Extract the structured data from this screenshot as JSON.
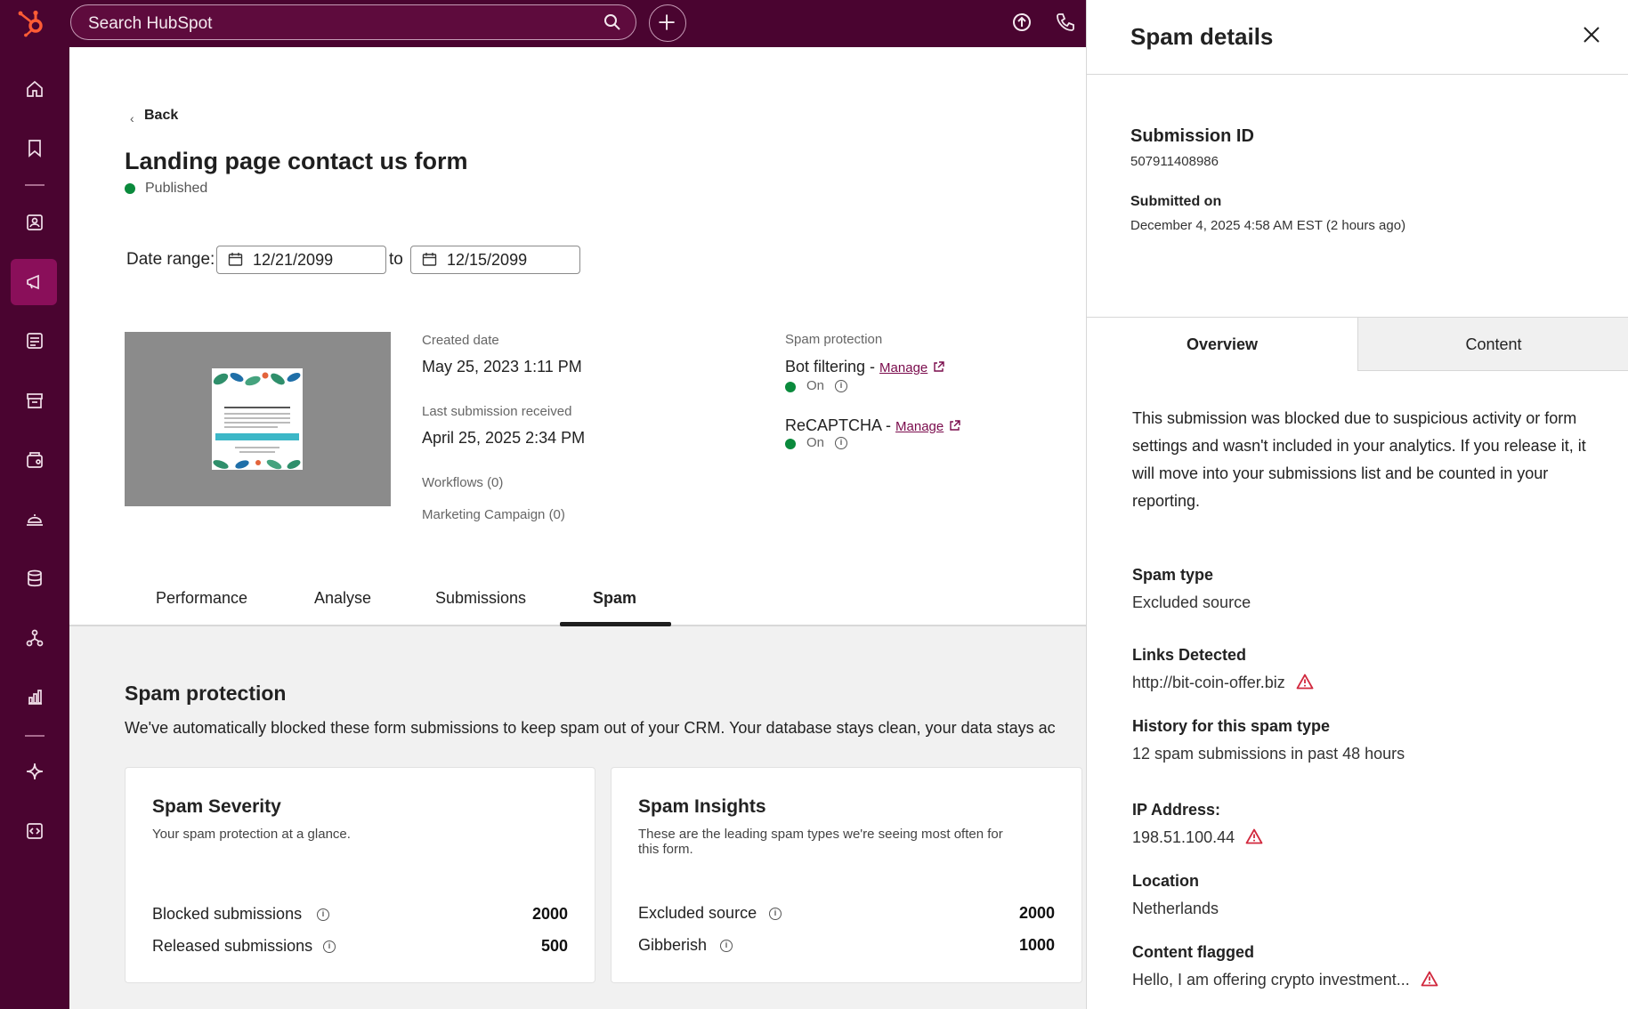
{
  "topbar": {
    "search_placeholder": "Search HubSpot"
  },
  "sidebar": {
    "items": [
      "home-icon",
      "bookmark-icon",
      "contacts-icon",
      "marketing-icon",
      "content-icon",
      "commerce-icon",
      "sales-icon",
      "service-icon",
      "data-icon",
      "automation-icon",
      "reporting-icon",
      "ai-icon",
      "developer-icon"
    ]
  },
  "page": {
    "back": "Back",
    "title": "Landing page contact us form",
    "status": "Published",
    "status_color": "#0a8a3c",
    "date_range_label": "Date range:",
    "date_from": "12/21/2099",
    "date_to_label": "to",
    "date_to": "12/15/2099"
  },
  "meta": {
    "created_label": "Created date",
    "created_value": "May 25, 2023  1:11 PM",
    "last_label": "Last submission received",
    "last_value": "April 25, 2025  2:34 PM",
    "workflows": "Workflows (0)",
    "campaign": "Marketing Campaign (0)"
  },
  "protection": {
    "label": "Spam protection",
    "bot_title": "Bot filtering - ",
    "bot_manage": "Manage",
    "bot_status": "On",
    "captcha_title": "ReCAPTCHA - ",
    "captcha_manage": "Manage",
    "captcha_status": "On"
  },
  "tabs": [
    {
      "label": "Performance"
    },
    {
      "label": "Analyse"
    },
    {
      "label": "Submissions"
    },
    {
      "label": "Spam",
      "active": true
    }
  ],
  "spam_section": {
    "title": "Spam protection",
    "description": "We've automatically blocked these form submissions to keep spam out of your CRM. Your database stays clean, your data stays ac"
  },
  "severity_card": {
    "title": "Spam Severity",
    "subtitle": "Your spam protection at a glance.",
    "rows": [
      {
        "label": "Blocked submissions",
        "value": "2000"
      },
      {
        "label": "Released submissions",
        "value": "500"
      }
    ]
  },
  "insights_card": {
    "title": "Spam Insights",
    "subtitle_1": "These are the leading spam types we're seeing most often for",
    "subtitle_2": "this form.",
    "rows": [
      {
        "label": "Excluded source",
        "value": "2000"
      },
      {
        "label": "Gibberish",
        "value": "1000"
      }
    ]
  },
  "panel": {
    "title": "Spam details",
    "submission_id_label": "Submission ID",
    "submission_id": "507911408986",
    "submitted_on_label": "Submitted on",
    "submitted_on": "December 4, 2025 4:58 AM EST (2 hours ago)",
    "tab_overview": "Overview",
    "tab_content": "Content",
    "description": "This submission was blocked due to suspicious activity or form settings and wasn't included in your analytics. If you release it, it will move into your submissions list and be counted in your reporting.",
    "spam_type_label": "Spam type",
    "spam_type": "Excluded source",
    "links_label": "Links Detected",
    "links": "http://bit-coin-offer.biz",
    "history_label": "History for this spam type",
    "history": "12 spam submissions in past 48 hours",
    "ip_label": "IP Address:",
    "ip": "198.51.100.44",
    "location_label": "Location",
    "location": "Netherlands",
    "content_label": "Content flagged",
    "content": "Hello, I am offering crypto investment...",
    "warning_color": "#d1283d"
  }
}
